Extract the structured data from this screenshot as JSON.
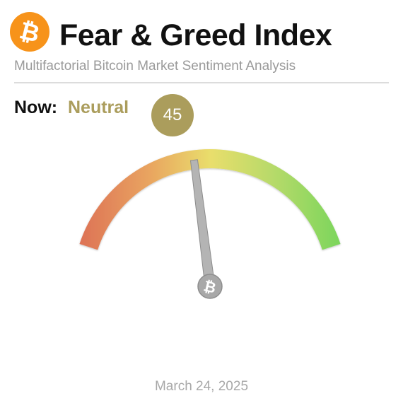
{
  "header": {
    "logo_icon": "bitcoin-icon",
    "title": "Fear & Greed Index",
    "subtitle": "Multifactorial Bitcoin Market Sentiment Analysis"
  },
  "now": {
    "label": "Now:",
    "sentiment": "Neutral",
    "value": "45"
  },
  "gauge": {
    "min": 0,
    "max": 100,
    "value": 45,
    "center_icon": "bitcoin-icon",
    "colors": {
      "fear": "#dc6d55",
      "mid_fear": "#e9a560",
      "neutral": "#e9de6c",
      "mid_greed": "#b8da6a",
      "greed": "#74d55a"
    }
  },
  "footer": {
    "date": "March 24, 2025"
  },
  "colors": {
    "brand_orange": "#f7931a",
    "neutral_accent": "#ab9d5c",
    "needle": "#b4b4b4"
  }
}
